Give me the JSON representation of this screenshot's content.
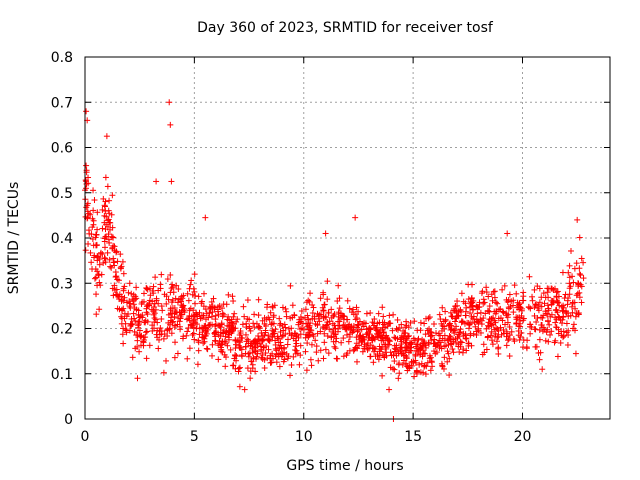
{
  "chart_data": {
    "type": "scatter",
    "title": "Day 360 of 2023, SRMTID for receiver tosf",
    "xlabel": "GPS time / hours",
    "ylabel": "SRMTID / TECUs",
    "xlim": [
      0,
      24
    ],
    "ylim": [
      0,
      0.8
    ],
    "xticks": [
      0,
      5,
      10,
      15,
      20
    ],
    "xtick_labels": [
      "0",
      "5",
      "10",
      "15",
      "20"
    ],
    "yticks": [
      0,
      0.1,
      0.2,
      0.3,
      0.4,
      0.5,
      0.6,
      0.7,
      0.8
    ],
    "ytick_labels": [
      "0",
      "0.1",
      "0.2",
      "0.3",
      "0.4",
      "0.5",
      "0.6",
      "0.7",
      "0.8"
    ],
    "grid": true,
    "marker": "plus",
    "color": "#ff0000",
    "trend": {
      "x": [
        0,
        0.3,
        0.6,
        1.0,
        1.5,
        2.0,
        3.0,
        4.0,
        5.0,
        6.0,
        7.0,
        8.0,
        9.0,
        10.0,
        11.0,
        12.0,
        13.0,
        14.0,
        15.0,
        16.0,
        17.0,
        18.0,
        19.0,
        20.0,
        21.0,
        22.0,
        22.8
      ],
      "y": [
        0.5,
        0.42,
        0.35,
        0.45,
        0.3,
        0.23,
        0.22,
        0.24,
        0.22,
        0.2,
        0.17,
        0.17,
        0.18,
        0.2,
        0.21,
        0.2,
        0.19,
        0.17,
        0.14,
        0.17,
        0.21,
        0.22,
        0.22,
        0.23,
        0.22,
        0.24,
        0.3
      ]
    },
    "spread": {
      "x": [
        0,
        1.5,
        3,
        6,
        10,
        14,
        18,
        22,
        22.8
      ],
      "y": [
        0.1,
        0.06,
        0.06,
        0.05,
        0.05,
        0.04,
        0.05,
        0.06,
        0.07
      ]
    },
    "outliers": [
      {
        "x": 3.85,
        "y": 0.7
      },
      {
        "x": 3.9,
        "y": 0.65
      },
      {
        "x": 3.95,
        "y": 0.525
      },
      {
        "x": 3.25,
        "y": 0.525
      },
      {
        "x": 0.05,
        "y": 0.68
      },
      {
        "x": 0.1,
        "y": 0.66
      },
      {
        "x": 0.05,
        "y": 0.56
      },
      {
        "x": 1.0,
        "y": 0.625
      },
      {
        "x": 12.35,
        "y": 0.445
      },
      {
        "x": 5.5,
        "y": 0.445
      },
      {
        "x": 22.5,
        "y": 0.44
      },
      {
        "x": 14.1,
        "y": 0.0
      },
      {
        "x": 13.9,
        "y": 0.065
      },
      {
        "x": 7.3,
        "y": 0.065
      },
      {
        "x": 2.4,
        "y": 0.09
      },
      {
        "x": 20.9,
        "y": 0.11
      },
      {
        "x": 11.0,
        "y": 0.41
      },
      {
        "x": 19.3,
        "y": 0.41
      }
    ],
    "x_range_points": [
      0,
      22.8
    ],
    "point_count": 1800
  }
}
